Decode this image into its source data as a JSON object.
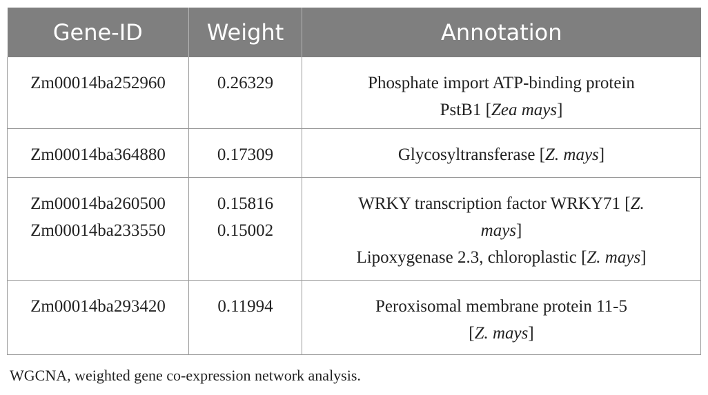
{
  "table": {
    "headers": [
      "Gene-ID",
      "Weight",
      "Annotation"
    ],
    "rows": [
      {
        "gene_ids": [
          "Zm00014ba252960"
        ],
        "weights": [
          "0.26329"
        ],
        "annotation_lines": [
          {
            "text": "Phosphate import ATP-binding protein",
            "species": ""
          },
          {
            "text": "PstB1 [",
            "species": "Zea mays",
            "suffix": "]"
          }
        ]
      },
      {
        "gene_ids": [
          "Zm00014ba364880"
        ],
        "weights": [
          "0.17309"
        ],
        "annotation_lines": [
          {
            "text": "Glycosyltransferase [",
            "species": "Z. mays",
            "suffix": "]"
          }
        ]
      },
      {
        "gene_ids": [
          "Zm00014ba260500",
          "Zm00014ba233550"
        ],
        "weights": [
          "0.15816",
          "0.15002"
        ],
        "annotation_lines": [
          {
            "text": "WRKY transcription factor WRKY71 [",
            "species": "Z.",
            "suffix": ""
          },
          {
            "text": "",
            "species": "mays",
            "suffix": "]"
          },
          {
            "text": "Lipoxygenase 2.3, chloroplastic [",
            "species": "Z. mays",
            "suffix": "]"
          }
        ]
      },
      {
        "gene_ids": [
          "Zm00014ba293420"
        ],
        "weights": [
          "0.11994"
        ],
        "annotation_lines": [
          {
            "text": "Peroxisomal membrane protein 11-5",
            "species": ""
          },
          {
            "text": "[",
            "species": "Z. mays",
            "suffix": "]"
          }
        ]
      }
    ]
  },
  "footnote": "WGCNA, weighted gene co-expression network analysis.",
  "colors": {
    "header_bg": "#7f7f7f",
    "header_text": "#ffffff",
    "border": "#9a9a9a",
    "text": "#222222"
  }
}
